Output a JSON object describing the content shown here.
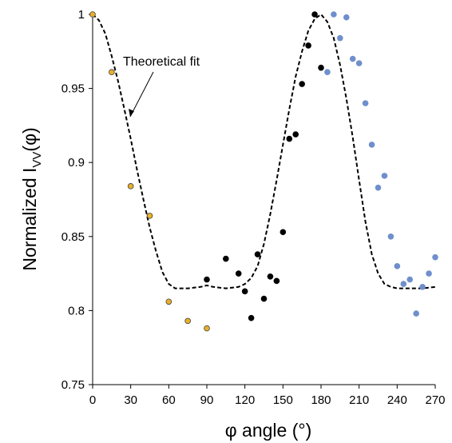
{
  "chart_data": {
    "type": "scatter",
    "title": "",
    "xlabel": "φ angle (°)",
    "ylabel_main": "Normalized  I",
    "ylabel_sub": "VV",
    "ylabel_tail": "(φ)",
    "xlim": [
      0,
      270
    ],
    "ylim": [
      0.75,
      1.0
    ],
    "xticks": [
      0,
      30,
      60,
      90,
      120,
      150,
      180,
      210,
      240,
      270
    ],
    "yticks": [
      0.75,
      0.8,
      0.85,
      0.9,
      0.95,
      1.0
    ],
    "ytick_labels": [
      "0.75",
      "0.8",
      "0.85",
      "0.9",
      "0.95",
      "1"
    ],
    "grid": false,
    "legend": "none",
    "annotation": "Theoretical fit",
    "series": [
      {
        "color": "#e8b02a",
        "edgecolor": "#404040",
        "points": [
          [
            0,
            1.0
          ],
          [
            15,
            0.961
          ],
          [
            30,
            0.884
          ],
          [
            45,
            0.864
          ],
          [
            60,
            0.806
          ],
          [
            75,
            0.793
          ],
          [
            90,
            0.788
          ]
        ]
      },
      {
        "color": "#000000",
        "edgecolor": "#000000",
        "points": [
          [
            90,
            0.821
          ],
          [
            105,
            0.835
          ],
          [
            115,
            0.825
          ],
          [
            120,
            0.813
          ],
          [
            125,
            0.795
          ],
          [
            130,
            0.838
          ],
          [
            135,
            0.808
          ],
          [
            140,
            0.823
          ],
          [
            145,
            0.82
          ],
          [
            150,
            0.853
          ],
          [
            155,
            0.916
          ],
          [
            160,
            0.919
          ],
          [
            165,
            0.953
          ],
          [
            170,
            0.979
          ],
          [
            175,
            1.0
          ],
          [
            180,
            0.964
          ]
        ]
      },
      {
        "color": "#6f8fcc",
        "edgecolor": "#6f8fcc",
        "points": [
          [
            185,
            0.961
          ],
          [
            190,
            1.0
          ],
          [
            195,
            0.984
          ],
          [
            200,
            0.998
          ],
          [
            205,
            0.97
          ],
          [
            210,
            0.967
          ],
          [
            215,
            0.94
          ],
          [
            220,
            0.912
          ],
          [
            225,
            0.883
          ],
          [
            230,
            0.891
          ],
          [
            235,
            0.85
          ],
          [
            240,
            0.83
          ],
          [
            245,
            0.818
          ],
          [
            250,
            0.821
          ],
          [
            255,
            0.798
          ],
          [
            260,
            0.816
          ],
          [
            265,
            0.825
          ],
          [
            270,
            0.836
          ]
        ]
      }
    ],
    "fit_line": {
      "color": "#000000",
      "style": "dashed",
      "points": [
        [
          0,
          1.0
        ],
        [
          5,
          0.996
        ],
        [
          10,
          0.987
        ],
        [
          15,
          0.972
        ],
        [
          20,
          0.955
        ],
        [
          25,
          0.936
        ],
        [
          30,
          0.916
        ],
        [
          35,
          0.895
        ],
        [
          40,
          0.875
        ],
        [
          45,
          0.856
        ],
        [
          50,
          0.84
        ],
        [
          55,
          0.826
        ],
        [
          60,
          0.818
        ],
        [
          65,
          0.815
        ],
        [
          75,
          0.815
        ],
        [
          85,
          0.816
        ],
        [
          90,
          0.817
        ],
        [
          95,
          0.816
        ],
        [
          105,
          0.815
        ],
        [
          115,
          0.816
        ],
        [
          120,
          0.818
        ],
        [
          125,
          0.822
        ],
        [
          130,
          0.83
        ],
        [
          135,
          0.845
        ],
        [
          140,
          0.865
        ],
        [
          145,
          0.888
        ],
        [
          150,
          0.912
        ],
        [
          155,
          0.936
        ],
        [
          160,
          0.958
        ],
        [
          165,
          0.975
        ],
        [
          170,
          0.989
        ],
        [
          175,
          0.997
        ],
        [
          180,
          1.0
        ],
        [
          185,
          0.995
        ],
        [
          190,
          0.984
        ],
        [
          195,
          0.966
        ],
        [
          200,
          0.943
        ],
        [
          205,
          0.917
        ],
        [
          210,
          0.888
        ],
        [
          215,
          0.86
        ],
        [
          220,
          0.838
        ],
        [
          225,
          0.825
        ],
        [
          230,
          0.818
        ],
        [
          235,
          0.816
        ],
        [
          240,
          0.815
        ],
        [
          250,
          0.815
        ],
        [
          260,
          0.815
        ],
        [
          270,
          0.816
        ]
      ]
    }
  }
}
